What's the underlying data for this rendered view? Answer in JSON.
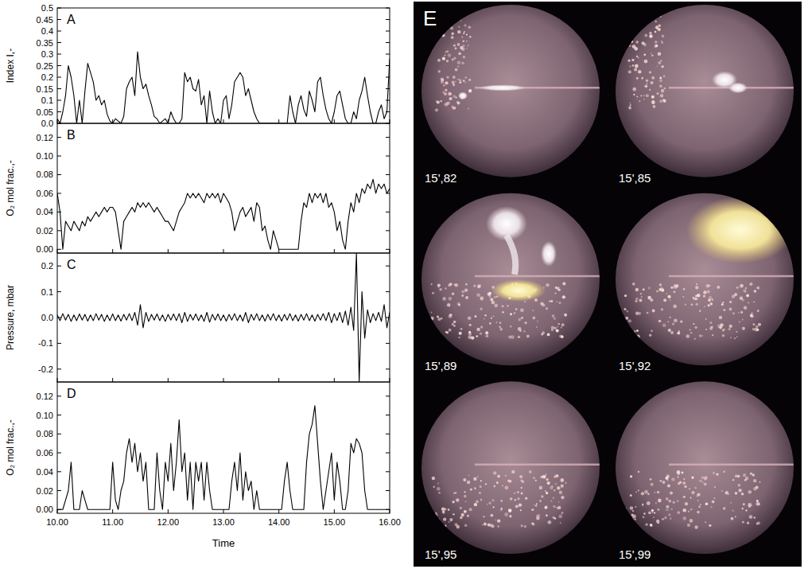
{
  "chart_data": [
    {
      "type": "line",
      "title": "A",
      "ylabel": "Index I,-",
      "color": "#000000",
      "grid": false,
      "tick_labels": "y",
      "x": [
        10,
        10.05,
        10.1,
        10.15,
        10.2,
        10.25,
        10.3,
        10.35,
        10.4,
        10.45,
        10.5,
        10.55,
        10.6,
        10.65,
        10.7,
        10.75,
        10.8,
        10.85,
        10.9,
        10.95,
        11,
        11.05,
        11.1,
        11.15,
        11.2,
        11.25,
        11.3,
        11.35,
        11.4,
        11.45,
        11.5,
        11.55,
        11.6,
        11.65,
        11.7,
        11.75,
        11.8,
        11.85,
        11.9,
        11.95,
        12,
        12.05,
        12.1,
        12.15,
        12.2,
        12.25,
        12.3,
        12.35,
        12.4,
        12.45,
        12.5,
        12.55,
        12.6,
        12.65,
        12.7,
        12.75,
        12.8,
        12.85,
        12.9,
        12.95,
        13,
        13.05,
        13.1,
        13.15,
        13.2,
        13.25,
        13.3,
        13.35,
        13.4,
        13.45,
        13.5,
        13.55,
        13.6,
        13.65,
        13.7,
        13.75,
        13.8,
        13.85,
        13.9,
        13.95,
        14,
        14.05,
        14.1,
        14.15,
        14.2,
        14.25,
        14.3,
        14.35,
        14.4,
        14.45,
        14.5,
        14.55,
        14.6,
        14.65,
        14.7,
        14.75,
        14.8,
        14.85,
        14.9,
        14.95,
        15,
        15.05,
        15.1,
        15.15,
        15.2,
        15.25,
        15.3,
        15.35,
        15.4,
        15.45,
        15.5,
        15.55,
        15.6,
        15.65,
        15.7,
        15.75,
        15.8,
        15.85,
        15.9,
        15.95,
        16
      ],
      "values": [
        0.02,
        0,
        0.05,
        0.12,
        0.25,
        0.2,
        0.12,
        0,
        0.1,
        0,
        0.14,
        0.26,
        0.22,
        0.18,
        0.1,
        0.12,
        0.08,
        0.1,
        0.04,
        0.01,
        0,
        0.02,
        0.01,
        0,
        0.03,
        0.15,
        0.18,
        0.2,
        0.12,
        0.31,
        0.2,
        0.15,
        0.17,
        0.12,
        0.08,
        0.03,
        0.02,
        0,
        0.01,
        0.02,
        0,
        0.05,
        0.02,
        0,
        0,
        0.02,
        0.22,
        0.18,
        0.2,
        0.15,
        0.14,
        0.19,
        0.08,
        0.12,
        0,
        0.14,
        0.05,
        0,
        0.02,
        0,
        0.1,
        0.12,
        0.02,
        0.08,
        0.18,
        0.2,
        0.22,
        0.2,
        0.12,
        0.15,
        0.1,
        0.05,
        0.02,
        0,
        0,
        0,
        0,
        0,
        0,
        0,
        0,
        0,
        0,
        0,
        0.12,
        0.05,
        0,
        0.08,
        0.12,
        0.06,
        0.03,
        0.14,
        0.1,
        0.05,
        0.18,
        0.2,
        0.12,
        0.06,
        0.02,
        0,
        0.05,
        0.12,
        0.14,
        0.08,
        0.02,
        0,
        0,
        0.05,
        0.02,
        0.1,
        0.14,
        0.2,
        0.12,
        0.05,
        0,
        0,
        0.05,
        0.08,
        0.02,
        0.05,
        0.28
      ],
      "xlim": [
        10,
        16
      ],
      "xticks": [
        10,
        11,
        12,
        13,
        14,
        15,
        16
      ],
      "ylim": [
        0,
        0.5
      ],
      "yticks": [
        {
          "value": 0,
          "label": "0.0"
        },
        0.05,
        0.1,
        0.15,
        0.2,
        0.25,
        0.3,
        0.35,
        0.4,
        0.45,
        0.5
      ]
    },
    {
      "type": "line",
      "title": "B",
      "ylabel": "O₂ mol frac.,-",
      "color": "#000000",
      "grid": false,
      "tick_labels": "y",
      "x": [
        10,
        10.05,
        10.1,
        10.15,
        10.2,
        10.25,
        10.3,
        10.35,
        10.4,
        10.45,
        10.5,
        10.55,
        10.6,
        10.65,
        10.7,
        10.75,
        10.8,
        10.85,
        10.9,
        10.95,
        11,
        11.05,
        11.1,
        11.15,
        11.2,
        11.25,
        11.3,
        11.35,
        11.4,
        11.45,
        11.5,
        11.55,
        11.6,
        11.65,
        11.7,
        11.75,
        11.8,
        11.85,
        11.9,
        11.95,
        12,
        12.05,
        12.1,
        12.15,
        12.2,
        12.25,
        12.3,
        12.35,
        12.4,
        12.45,
        12.5,
        12.55,
        12.6,
        12.65,
        12.7,
        12.75,
        12.8,
        12.85,
        12.9,
        12.95,
        13,
        13.05,
        13.1,
        13.15,
        13.2,
        13.25,
        13.3,
        13.35,
        13.4,
        13.45,
        13.5,
        13.55,
        13.6,
        13.65,
        13.7,
        13.75,
        13.8,
        13.85,
        13.9,
        13.95,
        14,
        14.05,
        14.1,
        14.15,
        14.2,
        14.25,
        14.3,
        14.35,
        14.4,
        14.45,
        14.5,
        14.55,
        14.6,
        14.65,
        14.7,
        14.75,
        14.8,
        14.85,
        14.9,
        14.95,
        15,
        15.05,
        15.1,
        15.15,
        15.2,
        15.25,
        15.3,
        15.35,
        15.4,
        15.45,
        15.5,
        15.55,
        15.6,
        15.65,
        15.7,
        15.75,
        15.8,
        15.85,
        15.9,
        15.95,
        16
      ],
      "values": [
        0.06,
        0.04,
        0,
        0.03,
        0.025,
        0.02,
        0.03,
        0.025,
        0.02,
        0.03,
        0.025,
        0.035,
        0.03,
        0.035,
        0.04,
        0.035,
        0.04,
        0.045,
        0.04,
        0.045,
        0.045,
        0.04,
        0.02,
        0,
        0.03,
        0.035,
        0.04,
        0.045,
        0.04,
        0.05,
        0.045,
        0.05,
        0.045,
        0.05,
        0.045,
        0.04,
        0.045,
        0.04,
        0.035,
        0.03,
        0.03,
        0.025,
        0.02,
        0.03,
        0.04,
        0.045,
        0.05,
        0.06,
        0.055,
        0.06,
        0.055,
        0.06,
        0.055,
        0.05,
        0.06,
        0.055,
        0.06,
        0.055,
        0.06,
        0.05,
        0.06,
        0.055,
        0.05,
        0.04,
        0.02,
        0.03,
        0.04,
        0.045,
        0.035,
        0.04,
        0.045,
        0.03,
        0.05,
        0.045,
        0.02,
        0.025,
        0.01,
        0,
        0.02,
        0.01,
        0,
        0,
        0,
        0,
        0,
        0,
        0,
        0,
        0.03,
        0.05,
        0.045,
        0.06,
        0.05,
        0.06,
        0.055,
        0.06,
        0.05,
        0.06,
        0.045,
        0.05,
        0.04,
        0.02,
        0.03,
        0.01,
        0,
        0.03,
        0.05,
        0.04,
        0.06,
        0.05,
        0.065,
        0.06,
        0.07,
        0.065,
        0.075,
        0.06,
        0.07,
        0.065,
        0.07,
        0.06,
        0.065
      ],
      "xlim": [
        10,
        16
      ],
      "xticks": [
        10,
        11,
        12,
        13,
        14,
        15,
        16
      ],
      "ylim": [
        -0.004,
        0.135
      ],
      "yticks": [
        {
          "value": 0,
          "label": "0.00"
        },
        0.02,
        0.04,
        0.06,
        0.08,
        {
          "value": 0.1,
          "label": "0.10"
        },
        0.12
      ]
    },
    {
      "type": "line",
      "title": "C",
      "ylabel": "Pressure, mbar",
      "color": "#000000",
      "grid": false,
      "tick_labels": "y",
      "x": [
        10,
        10.05,
        10.1,
        10.15,
        10.2,
        10.25,
        10.3,
        10.35,
        10.4,
        10.45,
        10.5,
        10.55,
        10.6,
        10.65,
        10.7,
        10.75,
        10.8,
        10.85,
        10.9,
        10.95,
        11,
        11.05,
        11.1,
        11.15,
        11.2,
        11.25,
        11.3,
        11.35,
        11.4,
        11.45,
        11.5,
        11.55,
        11.6,
        11.65,
        11.7,
        11.75,
        11.8,
        11.85,
        11.9,
        11.95,
        12,
        12.05,
        12.1,
        12.15,
        12.2,
        12.25,
        12.3,
        12.35,
        12.4,
        12.45,
        12.5,
        12.55,
        12.6,
        12.65,
        12.7,
        12.75,
        12.8,
        12.85,
        12.9,
        12.95,
        13,
        13.05,
        13.1,
        13.15,
        13.2,
        13.25,
        13.3,
        13.35,
        13.4,
        13.45,
        13.5,
        13.55,
        13.6,
        13.65,
        13.7,
        13.75,
        13.8,
        13.85,
        13.9,
        13.95,
        14,
        14.05,
        14.1,
        14.15,
        14.2,
        14.25,
        14.3,
        14.35,
        14.4,
        14.45,
        14.5,
        14.55,
        14.6,
        14.65,
        14.7,
        14.75,
        14.8,
        14.85,
        14.9,
        14.95,
        15,
        15.05,
        15.1,
        15.15,
        15.2,
        15.25,
        15.3,
        15.35,
        15.4,
        15.45,
        15.5,
        15.55,
        15.6,
        15.65,
        15.7,
        15.75,
        15.8,
        15.85,
        15.9,
        15.95,
        16
      ],
      "values": [
        0.01,
        -0.012,
        0.015,
        -0.01,
        0.012,
        -0.015,
        0.01,
        -0.012,
        0.014,
        -0.01,
        0.012,
        -0.014,
        0.01,
        -0.012,
        0.015,
        -0.01,
        0.012,
        -0.015,
        0.01,
        -0.012,
        0.014,
        -0.012,
        0.01,
        -0.014,
        0.012,
        -0.01,
        0.015,
        -0.012,
        0.02,
        -0.03,
        0.05,
        -0.04,
        0.02,
        -0.015,
        0.012,
        -0.01,
        0.014,
        -0.012,
        0.01,
        -0.015,
        0.012,
        -0.01,
        0.014,
        -0.012,
        0.015,
        -0.02,
        0.02,
        -0.015,
        0.012,
        -0.01,
        0.014,
        -0.012,
        0.01,
        -0.015,
        0.02,
        -0.018,
        0.012,
        -0.01,
        0.014,
        -0.012,
        0.01,
        -0.014,
        0.012,
        -0.01,
        0.015,
        -0.012,
        0.01,
        -0.014,
        0.02,
        -0.02,
        0.012,
        -0.01,
        0.015,
        -0.012,
        0.01,
        -0.014,
        0.012,
        -0.01,
        0.015,
        -0.012,
        0.01,
        -0.014,
        0.012,
        -0.01,
        0.015,
        -0.012,
        0.01,
        -0.014,
        0.012,
        -0.01,
        0.015,
        -0.012,
        0.01,
        -0.014,
        0.012,
        -0.01,
        0.015,
        -0.012,
        0.02,
        -0.02,
        0.015,
        -0.012,
        0.02,
        -0.02,
        0.025,
        -0.03,
        0.04,
        -0.05,
        0.25,
        -0.25,
        0.1,
        -0.08,
        0.03,
        -0.02,
        0.015,
        -0.012,
        0.02,
        -0.015,
        0.05,
        -0.04,
        0.02
      ],
      "xlim": [
        10,
        16
      ],
      "xticks": [
        10,
        11,
        12,
        13,
        14,
        15,
        16
      ],
      "ylim": [
        -0.25,
        0.25
      ],
      "yticks": [
        -0.2,
        -0.1,
        {
          "value": 0,
          "label": "0.0"
        },
        0.1,
        0.2
      ]
    },
    {
      "type": "line",
      "title": "D",
      "ylabel": "O₂ mol frac.,-",
      "xlabel": "Time",
      "color": "#000000",
      "grid": false,
      "x": [
        10,
        10.05,
        10.1,
        10.15,
        10.2,
        10.25,
        10.3,
        10.35,
        10.4,
        10.45,
        10.5,
        10.55,
        10.6,
        10.65,
        10.7,
        10.75,
        10.8,
        10.85,
        10.9,
        10.95,
        11,
        11.05,
        11.1,
        11.15,
        11.2,
        11.25,
        11.3,
        11.35,
        11.4,
        11.45,
        11.5,
        11.55,
        11.6,
        11.65,
        11.7,
        11.75,
        11.8,
        11.85,
        11.9,
        11.95,
        12,
        12.05,
        12.1,
        12.15,
        12.2,
        12.25,
        12.3,
        12.35,
        12.4,
        12.45,
        12.5,
        12.55,
        12.6,
        12.65,
        12.7,
        12.75,
        12.8,
        12.85,
        12.9,
        12.95,
        13,
        13.05,
        13.1,
        13.15,
        13.2,
        13.25,
        13.3,
        13.35,
        13.4,
        13.45,
        13.5,
        13.55,
        13.6,
        13.65,
        13.7,
        13.75,
        13.8,
        13.85,
        13.9,
        13.95,
        14,
        14.05,
        14.1,
        14.15,
        14.2,
        14.25,
        14.3,
        14.35,
        14.4,
        14.45,
        14.5,
        14.55,
        14.6,
        14.65,
        14.7,
        14.75,
        14.8,
        14.85,
        14.9,
        14.95,
        15,
        15.05,
        15.1,
        15.15,
        15.2,
        15.25,
        15.3,
        15.35,
        15.4,
        15.45,
        15.5,
        15.55,
        15.6,
        15.65,
        15.7,
        15.75,
        15.8,
        15.85,
        15.9,
        15.95,
        16
      ],
      "values": [
        0,
        0,
        0,
        0.01,
        0.02,
        0.05,
        0,
        0,
        0,
        0.02,
        0.01,
        0,
        0,
        0,
        0,
        0,
        0,
        0,
        0,
        0,
        0.05,
        0.01,
        0,
        0.02,
        0.03,
        0.06,
        0.075,
        0.05,
        0.07,
        0.04,
        0.06,
        0.03,
        0.05,
        0,
        0,
        0,
        0.06,
        0.02,
        0,
        0.05,
        0.03,
        0.07,
        0.02,
        0.05,
        0.095,
        0.04,
        0.06,
        0.01,
        0.05,
        0,
        0.05,
        0.03,
        0.05,
        0.01,
        0.05,
        0.02,
        0,
        0,
        0,
        0,
        0,
        0,
        0,
        0.03,
        0.05,
        0.02,
        0.06,
        0.01,
        0.04,
        0.02,
        0.03,
        0,
        0.02,
        0,
        0,
        0,
        0,
        0,
        0,
        0,
        0,
        0,
        0.03,
        0.05,
        0.02,
        0,
        0,
        0,
        0,
        0,
        0.05,
        0.08,
        0.09,
        0.11,
        0.07,
        0.03,
        0,
        0.02,
        0.04,
        0.06,
        0.01,
        0.05,
        0.03,
        0,
        0,
        0.02,
        0.07,
        0.06,
        0.075,
        0.07,
        0.06,
        0.02,
        0,
        0,
        0,
        0,
        0,
        0,
        0,
        0,
        0
      ],
      "xlim": [
        10,
        16
      ],
      "xticks": [
        {
          "value": 10,
          "label": "10.00"
        },
        {
          "value": 11,
          "label": "11.00"
        },
        {
          "value": 12,
          "label": "12.00"
        },
        {
          "value": 13,
          "label": "13.00"
        },
        {
          "value": 14,
          "label": "14.00"
        },
        {
          "value": 15,
          "label": "15.00"
        },
        {
          "value": 16,
          "label": "16.00"
        }
      ],
      "ylim": [
        -0.004,
        0.135
      ],
      "yticks": [
        {
          "value": 0,
          "label": "0.00"
        },
        0.02,
        0.04,
        0.06,
        0.08,
        {
          "value": 0.1,
          "label": "0.10"
        },
        0.12
      ]
    }
  ],
  "panel_e": {
    "label": "E",
    "frames": [
      "15',82",
      "15',85",
      "15',89",
      "15',92",
      "15',95",
      "15',99"
    ]
  }
}
